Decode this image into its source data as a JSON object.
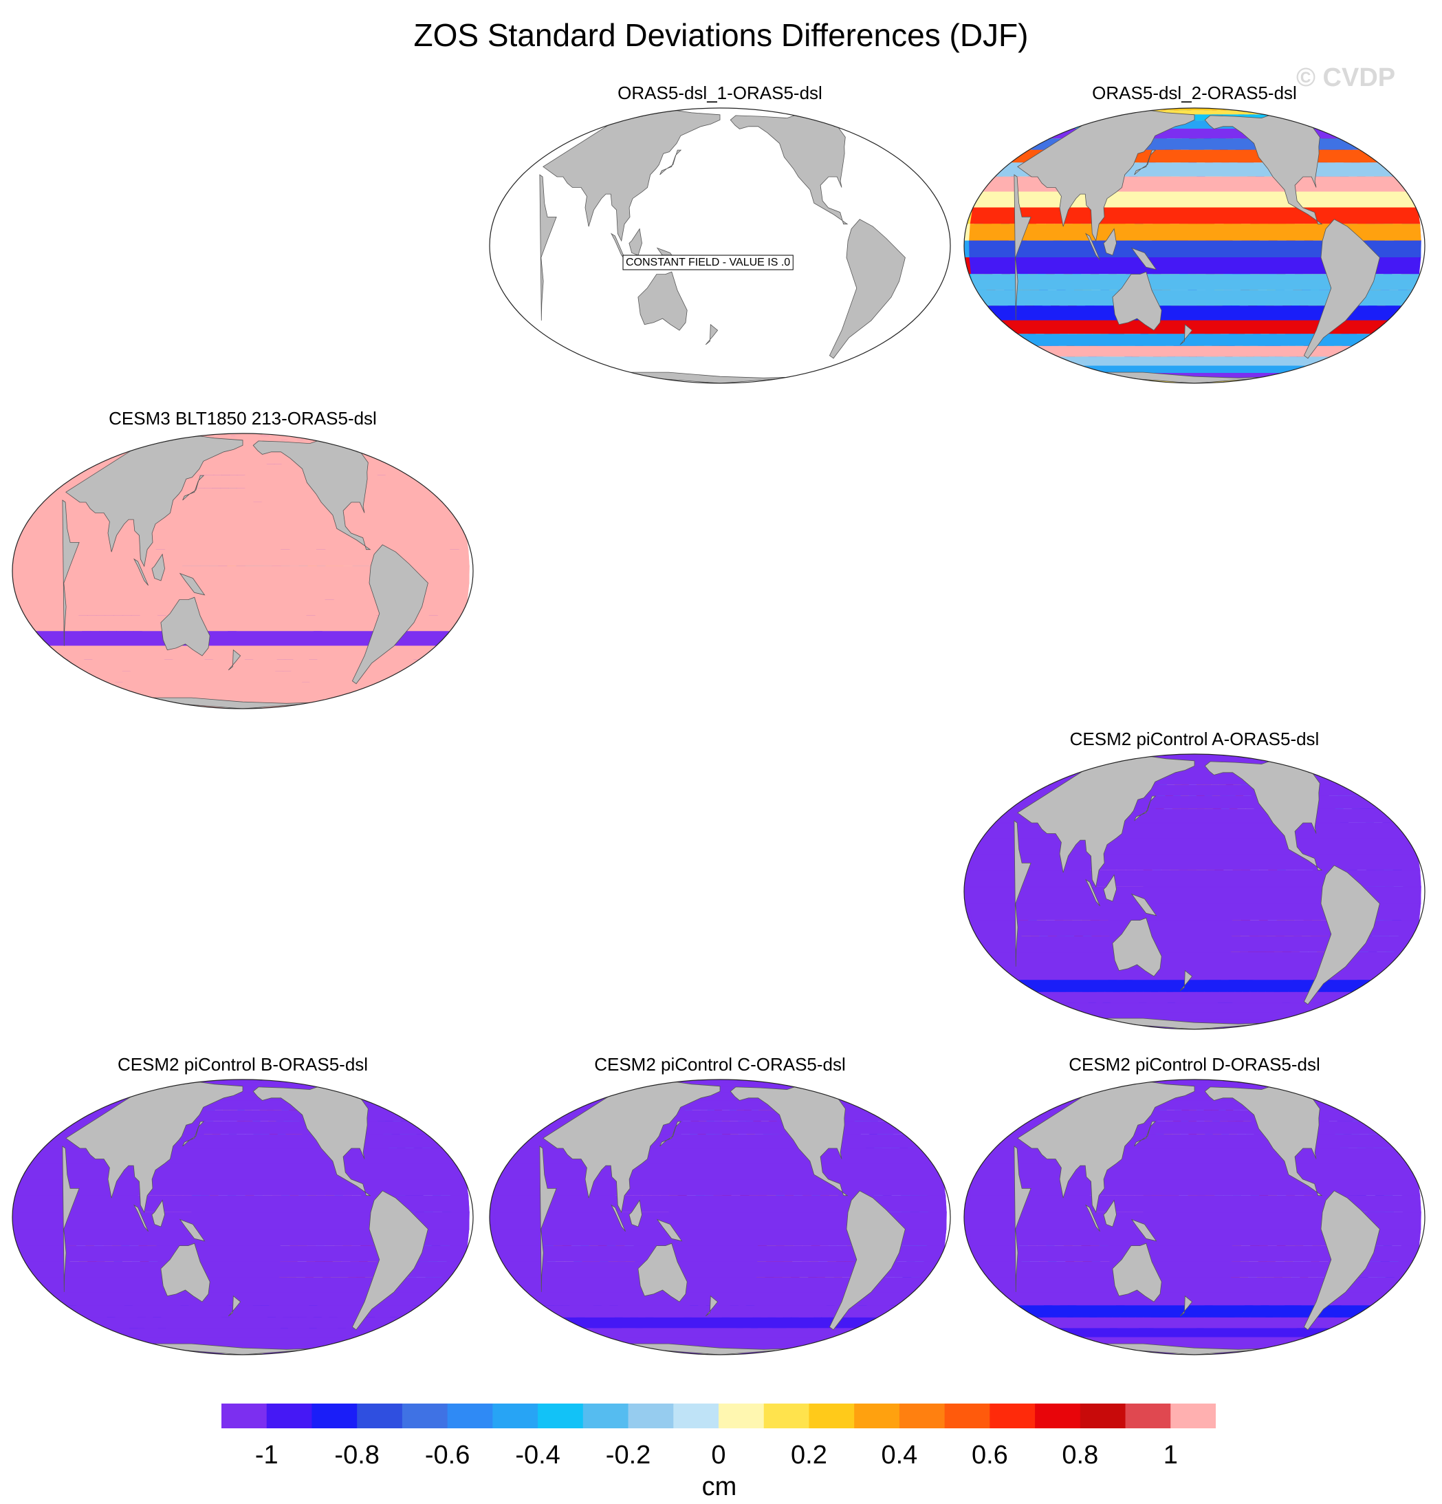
{
  "title": "ZOS Standard Deviations Differences (DJF)",
  "watermark": "© CVDP",
  "colors": [
    "#7c2ff0",
    "#4518f5",
    "#1a1ef8",
    "#2f4fe0",
    "#3f72e4",
    "#2f8af5",
    "#27a4f5",
    "#12c2f7",
    "#55bcf0",
    "#96ccef",
    "#bfe3f7",
    "#fff7b0",
    "#ffe34d",
    "#ffca1a",
    "#ffa10f",
    "#ff8010",
    "#ff5a0c",
    "#ff2a0a",
    "#e8050a",
    "#c80a0a",
    "#e04850",
    "#ffb0b0"
  ],
  "colorbar": {
    "ticks": [
      "-1",
      "-0.8",
      "-0.6",
      "-0.4",
      "-0.2",
      "0",
      "0.2",
      "0.4",
      "0.6",
      "0.8",
      "1"
    ],
    "unit": "cm"
  },
  "panels": [
    {
      "id": "p1",
      "label": "ORAS5-dsl_1-ORAS5-dsl",
      "pattern": "constant",
      "note": "CONSTANT FIELD - VALUE IS .0"
    },
    {
      "id": "p2",
      "label": "ORAS5-dsl_2-ORAS5-dsl",
      "pattern": "noisy"
    },
    {
      "id": "p3",
      "label": "CESM3 BLT1850 213-ORAS5-dsl",
      "pattern": "positive"
    },
    {
      "id": "p4",
      "label": "CESM2 piControl A-ORAS5-dsl",
      "pattern": "negative"
    },
    {
      "id": "p5",
      "label": "CESM2 piControl B-ORAS5-dsl",
      "pattern": "negative"
    },
    {
      "id": "p6",
      "label": "CESM2 piControl C-ORAS5-dsl",
      "pattern": "negative"
    },
    {
      "id": "p7",
      "label": "CESM2 piControl D-ORAS5-dsl",
      "pattern": "negative"
    }
  ]
}
